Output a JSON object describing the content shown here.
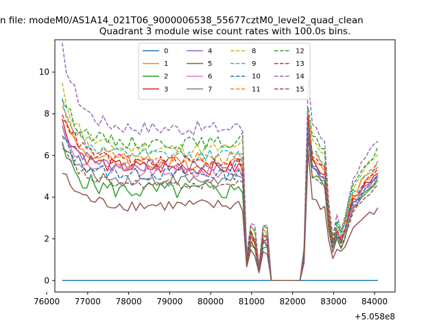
{
  "figure": {
    "suptitle": "n file: modeM0/AS1A14_021T06_9000006538_55677cztM0_level2_quad_clean",
    "offset_label": "+5.058e8"
  },
  "chart_data": {
    "type": "line",
    "title": "Quadrant 3 module wise count rates with 100.0s bins.",
    "xlabel": "",
    "ylabel": "",
    "x_offset": 505800000,
    "xlim": [
      76200,
      84500
    ],
    "ylim": [
      -0.55,
      11.55
    ],
    "x_ticks": [
      76000,
      77000,
      78000,
      79000,
      80000,
      81000,
      82000,
      83000,
      84000
    ],
    "x_tick_labels": [
      "76000",
      "77000",
      "78000",
      "79000",
      "80000",
      "81000",
      "82000",
      "83000",
      "84000"
    ],
    "y_ticks": [
      0,
      2,
      4,
      6,
      8,
      10
    ],
    "y_tick_labels": [
      "0",
      "2",
      "4",
      "6",
      "8",
      "10"
    ],
    "grid": false,
    "legend_position": "top-center",
    "legend_columns": 4,
    "x_start": 76380,
    "bin_width": 100,
    "n_bins": 78,
    "colors": {
      "0": "#1f77b4",
      "1": "#ff7f0e",
      "2": "#2ca02c",
      "3": "#d62728",
      "4": "#9467bd",
      "5": "#8c564b",
      "6": "#e377c2",
      "7": "#7f7f7f",
      "8": "#bcbd22",
      "9": "#17becf",
      "10": "#1f77b4",
      "11": "#ff7f0e",
      "12": "#2ca02c",
      "13": "#d62728",
      "14": "#9467bd",
      "15": "#8c564b"
    },
    "dip_pattern": [
      1.0,
      0.18,
      0.4,
      0.35,
      0.1,
      0.38,
      0.35,
      0.0
    ],
    "dip_start_index": 44,
    "gap_start_index": 52,
    "gap_end_index": 59,
    "recovery_pattern": [
      0.22,
      1.0,
      0.98,
      0.96,
      0.9,
      0.88,
      0.5,
      0.28,
      0.4,
      0.33,
      0.42,
      0.55,
      0.66,
      0.68,
      0.75,
      0.8,
      0.82,
      0.85,
      0.9,
      0.88,
      0.86,
      0.82,
      0.5
    ],
    "series": [
      {
        "name": "0",
        "style": "solid",
        "start": 0.0,
        "level": 0.0,
        "end": 0.0,
        "peak": 0.0,
        "noise": 0.0
      },
      {
        "name": "1",
        "style": "solid",
        "start": 8.0,
        "level": 5.6,
        "end": 6.0,
        "peak": 7.6,
        "noise": 0.35
      },
      {
        "name": "2",
        "style": "solid",
        "start": 6.3,
        "level": 4.3,
        "end": 5.2,
        "peak": 6.9,
        "noise": 0.45
      },
      {
        "name": "3",
        "style": "solid",
        "start": 7.6,
        "level": 5.4,
        "end": 5.9,
        "peak": 7.4,
        "noise": 0.35
      },
      {
        "name": "4",
        "style": "solid",
        "start": 7.4,
        "level": 5.5,
        "end": 5.7,
        "peak": 7.4,
        "noise": 0.3
      },
      {
        "name": "5",
        "style": "solid",
        "start": 5.2,
        "level": 3.6,
        "end": 3.9,
        "peak": 6.2,
        "noise": 0.3
      },
      {
        "name": "6",
        "style": "solid",
        "start": 7.0,
        "level": 5.2,
        "end": 5.6,
        "peak": 7.2,
        "noise": 0.3
      },
      {
        "name": "7",
        "style": "solid",
        "start": 6.6,
        "level": 4.8,
        "end": 5.4,
        "peak": 7.0,
        "noise": 0.3
      },
      {
        "name": "8",
        "style": "dashed",
        "start": 9.2,
        "level": 6.3,
        "end": 6.9,
        "peak": 7.9,
        "noise": 0.35
      },
      {
        "name": "9",
        "style": "dashed",
        "start": 8.6,
        "level": 6.0,
        "end": 6.4,
        "peak": 7.7,
        "noise": 0.3
      },
      {
        "name": "10",
        "style": "dashed",
        "start": 6.9,
        "level": 5.1,
        "end": 5.6,
        "peak": 7.2,
        "noise": 0.3
      },
      {
        "name": "11",
        "style": "dashed",
        "start": 8.4,
        "level": 5.9,
        "end": 6.3,
        "peak": 7.9,
        "noise": 0.3
      },
      {
        "name": "12",
        "style": "dashed",
        "start": 8.8,
        "level": 6.6,
        "end": 7.0,
        "peak": 8.3,
        "noise": 0.3
      },
      {
        "name": "13",
        "style": "dashed",
        "start": 8.2,
        "level": 5.7,
        "end": 6.1,
        "peak": 7.9,
        "noise": 0.3
      },
      {
        "name": "14",
        "style": "dashed",
        "start": 11.1,
        "level": 7.3,
        "end": 7.5,
        "peak": 9.7,
        "noise": 0.35
      },
      {
        "name": "15",
        "style": "dashed",
        "start": 6.4,
        "level": 4.6,
        "end": 5.1,
        "peak": 6.9,
        "noise": 0.25
      }
    ]
  }
}
